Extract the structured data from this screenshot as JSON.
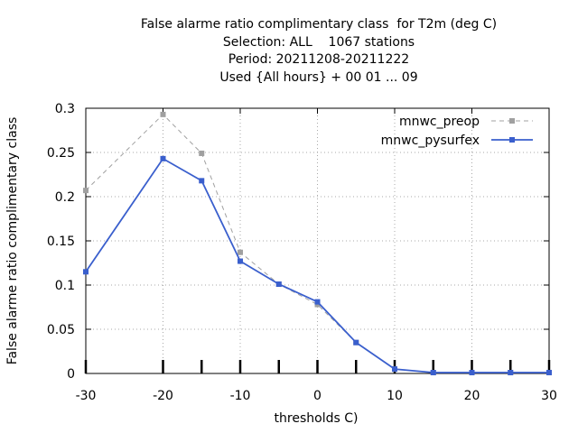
{
  "chart_data": {
    "type": "line",
    "title_lines": [
      "False alarme ratio complimentary class  for T2m (deg C)",
      "Selection: ALL    1067 stations",
      "Period: 20211208-20211222",
      "Used {All hours} + 00 01 ... 09"
    ],
    "xlabel": "thresholds C)",
    "ylabel": "False alarme ratio complimentary class",
    "xlim": [
      -30,
      30
    ],
    "ylim": [
      0,
      0.3
    ],
    "xticks": [
      "-30",
      "-20",
      "-10",
      "0",
      "10",
      "20",
      "30"
    ],
    "xtick_values": [
      -30,
      -20,
      -10,
      0,
      10,
      20,
      30
    ],
    "yticks": [
      "0",
      "0.05",
      "0.1",
      "0.15",
      "0.2",
      "0.25",
      "0.3"
    ],
    "ytick_values": [
      0,
      0.05,
      0.1,
      0.15,
      0.2,
      0.25,
      0.3
    ],
    "grid": true,
    "legend_position": "top-right",
    "data_ticks_x": [
      -30,
      -20,
      -15,
      -10,
      -5,
      0,
      5,
      10,
      15,
      20,
      25,
      30
    ],
    "series": [
      {
        "name": "mnwc_preop",
        "color": "#a0a0a0",
        "style": "dashed",
        "x": [
          -30,
          -20,
          -15,
          -10,
          -5,
          0,
          5,
          10,
          15,
          20,
          25,
          30
        ],
        "y": [
          0.207,
          0.293,
          0.249,
          0.137,
          0.101,
          0.078,
          0.035,
          0.005,
          0.001,
          0.001,
          0.001,
          0.001
        ]
      },
      {
        "name": "mnwc_pysurfex",
        "color": "#3a5fcd",
        "style": "solid",
        "x": [
          -30,
          -20,
          -15,
          -10,
          -5,
          0,
          5,
          10,
          15,
          20,
          25,
          30
        ],
        "y": [
          0.115,
          0.243,
          0.218,
          0.127,
          0.101,
          0.081,
          0.035,
          0.005,
          0.001,
          0.001,
          0.001,
          0.001
        ]
      }
    ]
  }
}
